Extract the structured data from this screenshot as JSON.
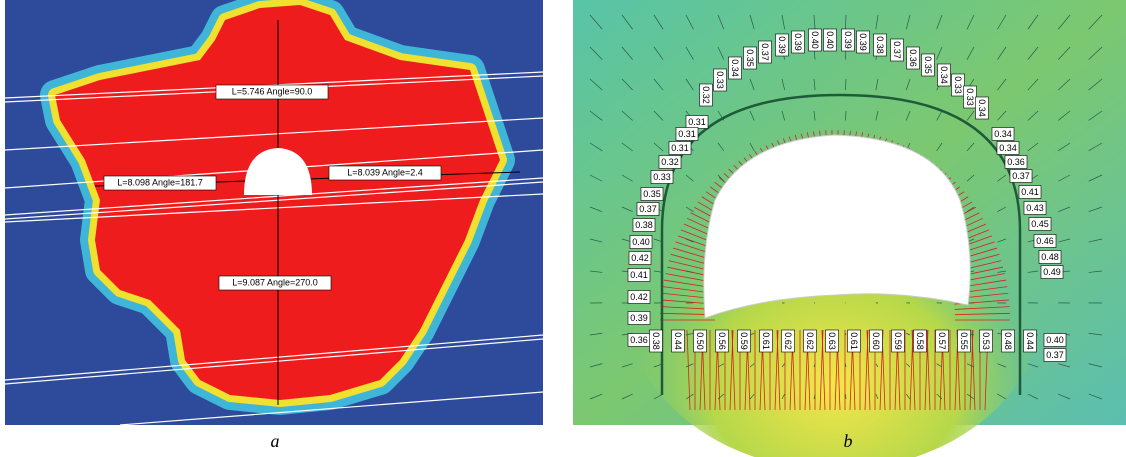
{
  "panels": [
    {
      "caption": "a",
      "labels": [
        "L=5.746  Angle=90.0",
        "L=8.098  Angle=181.7",
        "L=8.039  Angle=2.4",
        "L=9.087  Angle=270.0"
      ]
    },
    {
      "caption": "b",
      "arch_labels": [
        "0.32",
        "0.33",
        "0.34",
        "0.35",
        "0.37",
        "0.39",
        "0.39",
        "0.40",
        "0.40",
        "0.39",
        "0.39",
        "0.38",
        "0.37",
        "0.36",
        "0.35",
        "0.34",
        "0.33",
        "0.33",
        "0.34"
      ],
      "left_labels": [
        "0.31",
        "0.31",
        "0.31",
        "0.32",
        "0.33",
        "0.35",
        "0.37",
        "0.38",
        "0.40",
        "0.42",
        "0.41",
        "0.42",
        "0.39",
        "0.36"
      ],
      "right_labels": [
        "0.34",
        "0.34",
        "0.36",
        "0.37",
        "0.41",
        "0.43",
        "0.45",
        "0.46",
        "0.48",
        "0.49",
        "0.40",
        "0.37"
      ],
      "bottom_labels": [
        "0.38",
        "0.44",
        "0.50",
        "0.56",
        "0.59",
        "0.61",
        "0.62",
        "0.62",
        "0.63",
        "0.61",
        "0.60",
        "0.59",
        "0.58",
        "0.57",
        "0.55",
        "0.53",
        "0.48",
        "0.44"
      ]
    }
  ]
}
